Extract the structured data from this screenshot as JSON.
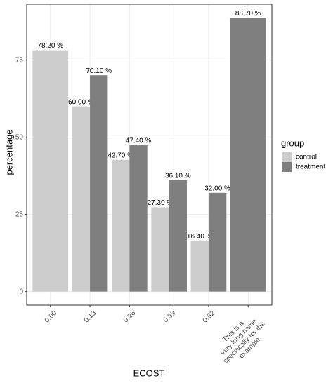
{
  "chart_data": {
    "type": "bar",
    "x_label": "ECOST",
    "y_label": "percentage",
    "legend_title": "group",
    "categories": [
      "0.00",
      "0.13",
      "0.26",
      "0.39",
      "0.52",
      "This is a\nvery long name\nspecifically for the\nexample"
    ],
    "series": [
      {
        "name": "control",
        "color": "#cccccc",
        "values": [
          78.2,
          60.0,
          42.7,
          27.3,
          16.4,
          null
        ],
        "value_labels": [
          "78.20 %",
          "60.00 %",
          "42.70 %",
          "27.30 %",
          "16.40 %",
          null
        ]
      },
      {
        "name": "treatment",
        "color": "#7f7f7f",
        "values": [
          null,
          70.1,
          47.4,
          36.1,
          32.0,
          88.7
        ],
        "value_labels": [
          null,
          "70.10 %",
          "47.40 %",
          "36.10 %",
          "32.00 %",
          "88.70 %"
        ]
      }
    ],
    "ylim": [
      -4.4,
      93.1
    ],
    "yticks": [
      0,
      25,
      50,
      75
    ],
    "grid": true,
    "legend": "right"
  }
}
